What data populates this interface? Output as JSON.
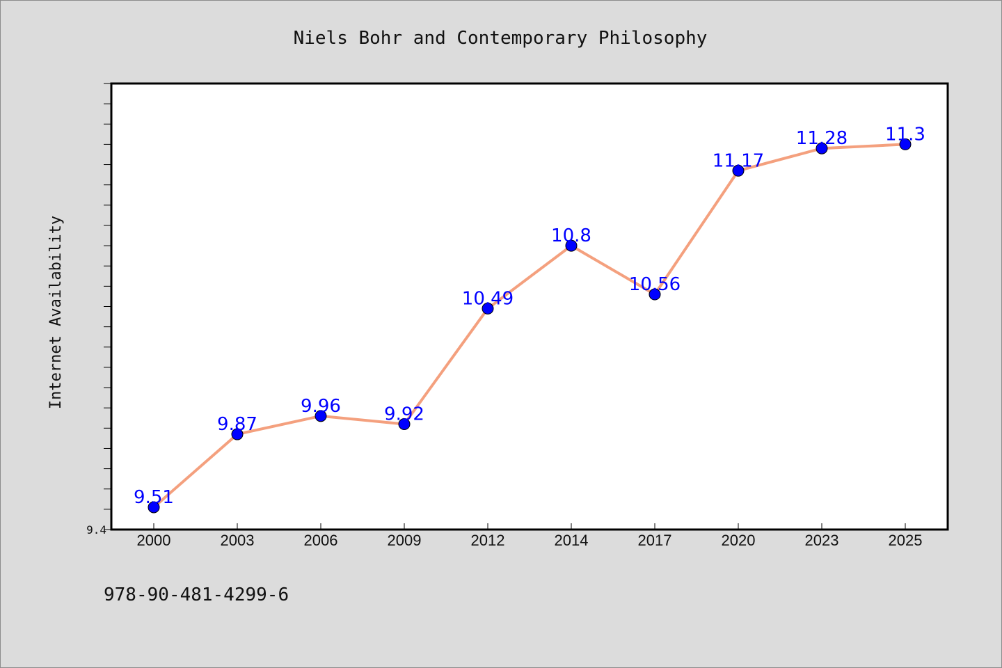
{
  "chart_data": {
    "type": "line",
    "title": "Niels Bohr and Contemporary Philosophy",
    "xlabel": "",
    "ylabel": "Internet Availability",
    "categories": [
      "2000",
      "2003",
      "2006",
      "2009",
      "2012",
      "2014",
      "2017",
      "2020",
      "2023",
      "2025"
    ],
    "series": [
      {
        "values": [
          9.51,
          9.87,
          9.96,
          9.92,
          10.49,
          10.8,
          10.56,
          11.17,
          11.28,
          11.3
        ],
        "labels": [
          "9.51",
          "9.87",
          "9.96",
          "9.92",
          "10.49",
          "10.8",
          "10.56",
          "11.17",
          "11.28",
          "11.3"
        ]
      }
    ],
    "ylim": [
      9.4,
      11.6
    ],
    "yticks_labeled": [
      "9.4"
    ],
    "grid": false,
    "legend": "none"
  },
  "footer": {
    "isbn": "978-90-481-4299-6"
  },
  "colors": {
    "line": "#f4a07e",
    "marker": "#0000ff",
    "label": "#0000ff",
    "background": "#dcdcdc",
    "plot_background": "#ffffff"
  }
}
